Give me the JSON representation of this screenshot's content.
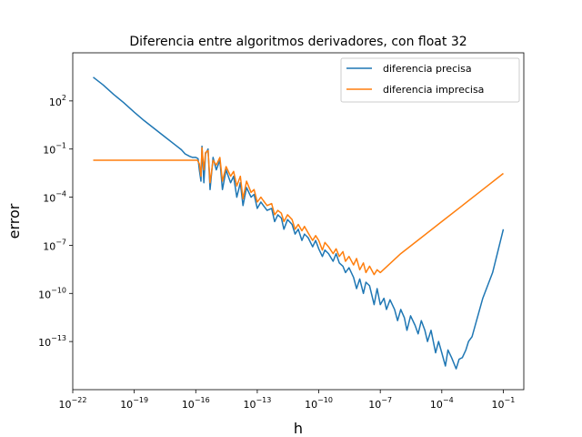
{
  "chart_data": {
    "type": "line",
    "title": "Diferencia entre algoritmos derivadores, con float 32",
    "xlabel": "h",
    "ylabel": "error",
    "x_scale": "log",
    "y_scale": "log",
    "xlim": [
      1e-22,
      1
    ],
    "ylim": [
      1e-16,
      100000.0
    ],
    "x_ticks": [
      {
        "value": 1e-22,
        "base": "10",
        "exp": "−22"
      },
      {
        "value": 1e-19,
        "base": "10",
        "exp": "−19"
      },
      {
        "value": 1e-16,
        "base": "10",
        "exp": "−16"
      },
      {
        "value": 1e-13,
        "base": "10",
        "exp": "−13"
      },
      {
        "value": 1e-10,
        "base": "10",
        "exp": "−10"
      },
      {
        "value": 1e-07,
        "base": "10",
        "exp": "−7"
      },
      {
        "value": 0.0001,
        "base": "10",
        "exp": "−4"
      },
      {
        "value": 0.1,
        "base": "10",
        "exp": "−1"
      }
    ],
    "y_ticks": [
      {
        "value": 1e-13,
        "base": "10",
        "exp": "−13"
      },
      {
        "value": 1e-10,
        "base": "10",
        "exp": "−10"
      },
      {
        "value": 1e-07,
        "base": "10",
        "exp": "−7"
      },
      {
        "value": 0.0001,
        "base": "10",
        "exp": "−4"
      },
      {
        "value": 0.1,
        "base": "10",
        "exp": "−1"
      },
      {
        "value": 100.0,
        "base": "10",
        "exp": "2"
      }
    ],
    "grid": false,
    "legend_position": "top-right",
    "series": [
      {
        "name": "diferencia precisa",
        "color": "#1f77b4",
        "x": [
          1e-21,
          3e-21,
          1e-20,
          3e-20,
          1e-19,
          3e-19,
          1e-18,
          3e-18,
          1e-17,
          2e-17,
          3e-17,
          5e-17,
          7e-17,
          1e-16,
          1.3e-16,
          1.5e-16,
          1.8e-16,
          2e-16,
          2.5e-16,
          3e-16,
          4e-16,
          5e-16,
          7e-16,
          1e-15,
          1.5e-15,
          2e-15,
          3e-15,
          5e-15,
          7e-15,
          1e-14,
          1.5e-14,
          2e-14,
          3e-14,
          5e-14,
          7e-14,
          1e-13,
          1.5e-13,
          2e-13,
          3e-13,
          5e-13,
          7e-13,
          1e-12,
          1.5e-12,
          2e-12,
          3e-12,
          5e-12,
          7e-12,
          1e-11,
          1.5e-11,
          2e-11,
          3e-11,
          5e-11,
          7e-11,
          1e-10,
          1.5e-10,
          2e-10,
          3e-10,
          5e-10,
          7e-10,
          1e-09,
          1.5e-09,
          2e-09,
          3e-09,
          5e-09,
          7e-09,
          1e-08,
          1.5e-08,
          2e-08,
          3e-08,
          5e-08,
          7e-08,
          1e-07,
          1.5e-07,
          2e-07,
          3e-07,
          5e-07,
          7e-07,
          1e-06,
          1.5e-06,
          2e-06,
          3e-06,
          5e-06,
          7e-06,
          1e-05,
          1.5e-05,
          2e-05,
          3e-05,
          5e-05,
          7e-05,
          0.0001,
          0.00015,
          0.0002,
          0.0003,
          0.0005,
          0.0007,
          0.001,
          0.0015,
          0.002,
          0.003,
          0.01,
          0.03,
          0.1
        ],
        "y": [
          3000,
          1000,
          250,
          80,
          20,
          6,
          1.8,
          0.6,
          0.18,
          0.09,
          0.05,
          0.035,
          0.03,
          0.03,
          0.025,
          0.005,
          0.001,
          0.15,
          0.0008,
          0.05,
          0.1,
          0.0003,
          0.03,
          0.005,
          0.02,
          0.0003,
          0.005,
          0.0008,
          0.002,
          0.0001,
          0.0008,
          3e-05,
          0.0004,
          0.0001,
          0.00015,
          2e-05,
          5e-05,
          3e-05,
          1.5e-05,
          2e-05,
          3e-06,
          8e-06,
          5e-06,
          1e-06,
          4e-06,
          2e-06,
          5e-07,
          1e-06,
          2e-07,
          5e-07,
          3e-07,
          8e-08,
          2e-07,
          6e-08,
          2e-08,
          5e-08,
          3e-08,
          1e-08,
          3e-08,
          8e-09,
          5e-09,
          2e-09,
          4e-09,
          1e-09,
          2e-10,
          8e-10,
          1e-10,
          5e-10,
          3e-10,
          2e-11,
          2e-10,
          2e-11,
          5e-11,
          1e-11,
          4e-11,
          1e-11,
          2e-12,
          1e-11,
          3e-12,
          5e-13,
          4e-12,
          1e-12,
          3e-13,
          2e-12,
          5e-13,
          1e-13,
          5e-13,
          2e-14,
          1e-13,
          2e-14,
          3e-15,
          3e-14,
          1e-14,
          2e-15,
          8e-15,
          1e-14,
          3e-14,
          1e-13,
          2e-13,
          5e-11,
          2e-09,
          1e-06
        ]
      },
      {
        "name": "diferencia imprecisa",
        "color": "#ff7f0e",
        "x": [
          1e-21,
          1e-20,
          1e-19,
          1e-18,
          1e-17,
          5e-17,
          9e-17,
          1.2e-16,
          1.5e-16,
          1.8e-16,
          2e-16,
          2.5e-16,
          3e-16,
          4e-16,
          5e-16,
          7e-16,
          1e-15,
          1.5e-15,
          2e-15,
          3e-15,
          5e-15,
          7e-15,
          1e-14,
          1.5e-14,
          2e-14,
          3e-14,
          5e-14,
          7e-14,
          1e-13,
          1.5e-13,
          2e-13,
          3e-13,
          5e-13,
          7e-13,
          1e-12,
          1.5e-12,
          2e-12,
          3e-12,
          5e-12,
          7e-12,
          1e-11,
          1.5e-11,
          2e-11,
          3e-11,
          5e-11,
          7e-11,
          1e-10,
          1.5e-10,
          2e-10,
          3e-10,
          5e-10,
          7e-10,
          1e-09,
          1.5e-09,
          2e-09,
          3e-09,
          5e-09,
          7e-09,
          1e-08,
          1.5e-08,
          2e-08,
          3e-08,
          5e-08,
          7e-08,
          1e-07,
          1e-06,
          1e-05,
          0.0001,
          0.001,
          0.01,
          0.1
        ],
        "y": [
          0.02,
          0.02,
          0.02,
          0.02,
          0.02,
          0.02,
          0.02,
          0.02,
          0.012,
          0.002,
          0.12,
          0.005,
          0.06,
          0.08,
          0.0008,
          0.02,
          0.01,
          0.03,
          0.001,
          0.008,
          0.002,
          0.004,
          0.0005,
          0.002,
          8e-05,
          0.001,
          0.0002,
          0.0003,
          5e-05,
          0.0001,
          6e-05,
          3e-05,
          4e-05,
          8e-06,
          1.5e-05,
          1e-05,
          3e-06,
          8e-06,
          4e-06,
          1e-06,
          2e-06,
          8e-07,
          1.5e-06,
          6e-07,
          2e-07,
          4e-07,
          2e-07,
          5e-08,
          1.5e-07,
          8e-08,
          3e-08,
          6e-08,
          2e-08,
          4e-08,
          1e-08,
          2e-08,
          6e-09,
          1.5e-08,
          3e-09,
          8e-09,
          2e-09,
          5e-09,
          1.5e-09,
          3e-09,
          2e-09,
          3e-08,
          3e-07,
          3e-06,
          3e-05,
          0.0003,
          0.003
        ]
      }
    ]
  }
}
